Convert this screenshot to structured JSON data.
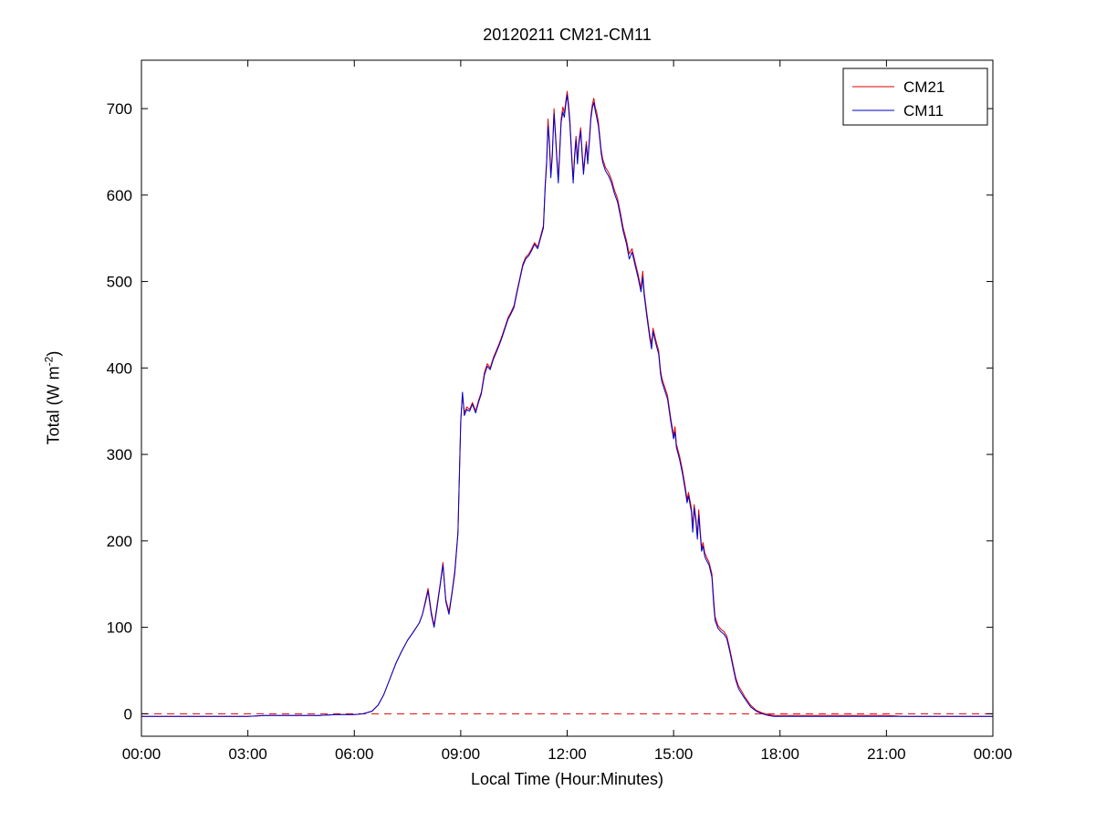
{
  "chart_data": {
    "type": "line",
    "title": "20120211 CM21-CM11",
    "xlabel": "Local Time (Hour:Minutes)",
    "ylabel": "Total (W m-2)",
    "ylabel_parts": {
      "main": "Total (W m",
      "sup": "-2",
      "close": ")"
    },
    "xlim": [
      0,
      24
    ],
    "ylim": [
      -26,
      756
    ],
    "grid": false,
    "x_ticks": [
      {
        "value": 0,
        "label": "00:00"
      },
      {
        "value": 3,
        "label": "03:00"
      },
      {
        "value": 6,
        "label": "06:00"
      },
      {
        "value": 9,
        "label": "09:00"
      },
      {
        "value": 12,
        "label": "12:00"
      },
      {
        "value": 15,
        "label": "15:00"
      },
      {
        "value": 18,
        "label": "18:00"
      },
      {
        "value": 21,
        "label": "21:00"
      },
      {
        "value": 24,
        "label": "00:00"
      }
    ],
    "y_ticks": [
      0,
      100,
      200,
      300,
      400,
      500,
      600,
      700
    ],
    "zero_line": {
      "y": 0,
      "color": "#dd0000",
      "style": "dashed"
    },
    "legend": {
      "position": "top-right",
      "entries": [
        {
          "name": "CM21",
          "color": "#dd0000"
        },
        {
          "name": "CM11",
          "color": "#0000cc"
        }
      ]
    },
    "x": [
      0,
      0.5,
      1,
      1.5,
      2,
      2.5,
      3,
      3.5,
      4,
      4.5,
      5,
      5.5,
      6,
      6.25,
      6.5,
      6.67,
      6.83,
      7,
      7.17,
      7.33,
      7.5,
      7.67,
      7.83,
      7.92,
      8,
      8.08,
      8.17,
      8.25,
      8.33,
      8.42,
      8.5,
      8.58,
      8.67,
      8.75,
      8.83,
      8.92,
      9,
      9.05,
      9.1,
      9.17,
      9.25,
      9.33,
      9.42,
      9.5,
      9.58,
      9.67,
      9.75,
      9.83,
      9.92,
      10,
      10.08,
      10.17,
      10.25,
      10.33,
      10.42,
      10.5,
      10.58,
      10.67,
      10.75,
      10.83,
      10.92,
      11,
      11.08,
      11.17,
      11.25,
      11.33,
      11.38,
      11.42,
      11.46,
      11.5,
      11.54,
      11.58,
      11.63,
      11.67,
      11.71,
      11.75,
      11.79,
      11.83,
      11.88,
      11.92,
      11.96,
      12,
      12.04,
      12.08,
      12.13,
      12.17,
      12.21,
      12.25,
      12.29,
      12.33,
      12.38,
      12.42,
      12.46,
      12.5,
      12.54,
      12.58,
      12.63,
      12.67,
      12.71,
      12.75,
      12.79,
      12.83,
      12.88,
      12.92,
      12.96,
      13,
      13.08,
      13.17,
      13.25,
      13.33,
      13.42,
      13.5,
      13.58,
      13.67,
      13.75,
      13.83,
      13.92,
      14,
      14.08,
      14.13,
      14.17,
      14.25,
      14.33,
      14.38,
      14.42,
      14.5,
      14.58,
      14.63,
      14.67,
      14.75,
      14.83,
      14.92,
      15,
      15.04,
      15.08,
      15.17,
      15.25,
      15.33,
      15.38,
      15.42,
      15.5,
      15.54,
      15.58,
      15.63,
      15.67,
      15.71,
      15.75,
      15.79,
      15.83,
      15.88,
      15.92,
      16,
      16.08,
      16.13,
      16.17,
      16.25,
      16.33,
      16.42,
      16.5,
      16.58,
      16.67,
      16.75,
      16.83,
      16.92,
      17,
      17.17,
      17.33,
      17.5,
      17.67,
      17.83,
      18,
      18.5,
      19,
      19.5,
      20,
      20.5,
      21,
      21.5,
      22,
      22.5,
      23,
      23.5,
      24
    ],
    "series": [
      {
        "name": "CM21",
        "color": "#dd0000",
        "values": [
          -3,
          -3,
          -3,
          -3,
          -3,
          -3,
          -3,
          -2,
          -2,
          -2,
          -2,
          -1,
          -1,
          0,
          3,
          10,
          22,
          40,
          58,
          72,
          85,
          95,
          105,
          115,
          130,
          145,
          118,
          102,
          125,
          150,
          175,
          132,
          118,
          140,
          165,
          210,
          340,
          370,
          348,
          355,
          352,
          360,
          350,
          362,
          372,
          395,
          405,
          400,
          412,
          420,
          428,
          438,
          448,
          458,
          465,
          472,
          488,
          505,
          520,
          528,
          532,
          538,
          545,
          540,
          552,
          565,
          612,
          640,
          688,
          662,
          625,
          648,
          700,
          672,
          645,
          618,
          652,
          688,
          702,
          695,
          708,
          720,
          705,
          685,
          645,
          618,
          648,
          668,
          642,
          662,
          678,
          652,
          628,
          645,
          662,
          640,
          668,
          692,
          705,
          712,
          702,
          696,
          685,
          668,
          652,
          642,
          632,
          626,
          618,
          606,
          596,
          580,
          562,
          548,
          532,
          538,
          522,
          508,
          492,
          512,
          488,
          462,
          438,
          428,
          446,
          432,
          420,
          398,
          388,
          378,
          368,
          342,
          322,
          332,
          312,
          298,
          282,
          262,
          248,
          256,
          238,
          216,
          242,
          226,
          206,
          236,
          212,
          192,
          198,
          186,
          182,
          175,
          162,
          132,
          112,
          102,
          98,
          95,
          90,
          76,
          58,
          42,
          32,
          26,
          20,
          10,
          4,
          1,
          -1,
          -2,
          -2,
          -2,
          -2,
          -2,
          -2,
          -2,
          -2,
          -3,
          -3,
          -3,
          -3,
          -3,
          -3
        ]
      },
      {
        "name": "CM11",
        "color": "#0000cc",
        "values": [
          -3,
          -3,
          -3,
          -3,
          -3,
          -3,
          -3,
          -2,
          -2,
          -2,
          -2,
          -1,
          -1,
          0,
          3,
          10,
          22,
          40,
          58,
          72,
          85,
          95,
          105,
          115,
          128,
          142,
          115,
          100,
          122,
          148,
          172,
          130,
          115,
          138,
          162,
          208,
          338,
          372,
          345,
          352,
          350,
          358,
          348,
          360,
          370,
          392,
          402,
          398,
          410,
          418,
          426,
          436,
          446,
          456,
          463,
          470,
          486,
          503,
          518,
          526,
          530,
          536,
          543,
          538,
          550,
          562,
          608,
          636,
          680,
          658,
          620,
          644,
          694,
          668,
          640,
          614,
          648,
          684,
          696,
          690,
          704,
          716,
          700,
          680,
          640,
          614,
          644,
          664,
          636,
          658,
          674,
          648,
          624,
          641,
          658,
          636,
          664,
          688,
          701,
          707,
          698,
          690,
          680,
          664,
          648,
          638,
          628,
          622,
          614,
          602,
          592,
          576,
          558,
          544,
          526,
          534,
          518,
          504,
          488,
          505,
          484,
          458,
          434,
          422,
          442,
          428,
          416,
          394,
          384,
          374,
          364,
          338,
          318,
          326,
          308,
          294,
          278,
          258,
          244,
          252,
          234,
          210,
          238,
          222,
          202,
          230,
          208,
          188,
          194,
          182,
          178,
          172,
          158,
          126,
          108,
          99,
          95,
          92,
          87,
          73,
          55,
          39,
          29,
          23,
          18,
          8,
          3,
          0,
          -2,
          -3,
          -3,
          -3,
          -3,
          -3,
          -3,
          -3,
          -3,
          -3,
          -3,
          -3,
          -3,
          -3,
          -3
        ]
      }
    ]
  }
}
